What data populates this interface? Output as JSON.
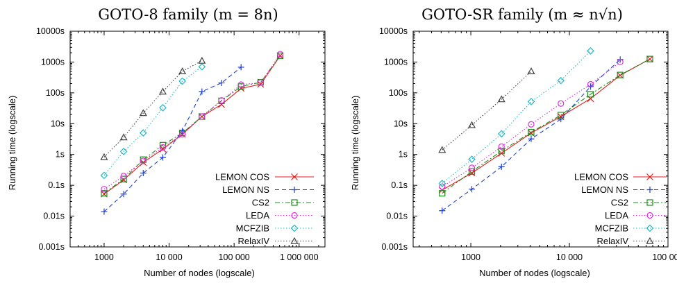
{
  "figure": {
    "colors": {
      "lemon_cos": "#e41a1c",
      "lemon_ns": "#1f3fd6",
      "cs2": "#1a8c1a",
      "leda": "#e030e0",
      "mcfzib": "#20b8c8",
      "relaxiv": "#404040"
    }
  },
  "chart_data": [
    {
      "type": "line",
      "title": "GOTO-8 family (m = 8n)",
      "xlabel": "Number of nodes (logscale)",
      "ylabel": "Running time (logscale)",
      "xscale": "log",
      "yscale": "log",
      "xlim": [
        300,
        2500000
      ],
      "ylim": [
        0.001,
        10000
      ],
      "xticks": [
        1000,
        10000,
        100000,
        1000000
      ],
      "xtick_labels": [
        "1000",
        "10 000",
        "100 000",
        "1 000 000"
      ],
      "yticks": [
        0.001,
        0.01,
        0.1,
        1,
        10,
        100,
        1000,
        10000
      ],
      "ytick_labels": [
        "0.001s",
        "0.01s",
        "0.1s",
        "1s",
        "10s",
        "100s",
        "1000s",
        "10000s"
      ],
      "grid": false,
      "legend_position": "bottom-right",
      "series": [
        {
          "name": "LEMON COS",
          "marker": "x",
          "dash": "solid",
          "color_key": "lemon_cos",
          "x": [
            1000,
            2000,
            4000,
            8000,
            16000,
            32000,
            64000,
            128000,
            256000,
            512000
          ],
          "y": [
            0.052,
            0.15,
            0.55,
            1.5,
            4.5,
            17,
            42,
            140,
            190,
            1600
          ]
        },
        {
          "name": "LEMON NS",
          "marker": "+",
          "dash": "long",
          "color_key": "lemon_ns",
          "x": [
            1000,
            2000,
            4000,
            8000,
            16000,
            32000,
            64000,
            128000
          ],
          "y": [
            0.014,
            0.052,
            0.25,
            0.8,
            5.8,
            110,
            210,
            680
          ]
        },
        {
          "name": "CS2",
          "marker": "square",
          "dash": "dashdot",
          "color_key": "cs2",
          "x": [
            1000,
            2000,
            4000,
            8000,
            16000,
            32000,
            64000,
            128000,
            256000,
            512000
          ],
          "y": [
            0.055,
            0.16,
            0.68,
            2.0,
            5.0,
            17,
            55,
            160,
            220,
            1600
          ]
        },
        {
          "name": "LEDA",
          "marker": "circle",
          "dash": "dotted",
          "color_key": "leda",
          "x": [
            1000,
            2000,
            4000,
            8000,
            16000,
            32000,
            64000,
            128000,
            256000,
            512000
          ],
          "y": [
            0.075,
            0.2,
            0.62,
            1.7,
            4.5,
            17,
            57,
            185,
            215,
            1800
          ]
        },
        {
          "name": "MCFZIB",
          "marker": "diamond",
          "dash": "dotted",
          "color_key": "mcfzib",
          "x": [
            1000,
            2000,
            4000,
            8000,
            16000,
            32000
          ],
          "y": [
            0.21,
            1.25,
            5.0,
            33,
            240,
            700
          ]
        },
        {
          "name": "RelaxIV",
          "marker": "triangle",
          "dash": "dotted",
          "color_key": "relaxiv",
          "x": [
            1000,
            2000,
            4000,
            8000,
            16000,
            32000
          ],
          "y": [
            0.82,
            3.6,
            22,
            110,
            500,
            1100
          ]
        }
      ]
    },
    {
      "type": "line",
      "title": "GOTO-SR family (m ≈ n√n)",
      "xlabel": "Number of nodes (logscale)",
      "ylabel": "Running time (logscale)",
      "xscale": "log",
      "yscale": "log",
      "xlim": [
        260,
        100000
      ],
      "ylim": [
        0.001,
        10000
      ],
      "xticks": [
        1000,
        10000,
        100000
      ],
      "xtick_labels": [
        "1000",
        "10 000",
        "100 000"
      ],
      "yticks": [
        0.001,
        0.01,
        0.1,
        1,
        10,
        100,
        1000,
        10000
      ],
      "ytick_labels": [
        "0.001s",
        "0.01s",
        "0.1s",
        "1s",
        "10s",
        "100s",
        "1000s",
        "10000s"
      ],
      "grid": false,
      "legend_position": "bottom-right",
      "series": [
        {
          "name": "LEMON COS",
          "marker": "x",
          "dash": "solid",
          "color_key": "lemon_cos",
          "x": [
            512,
            1024,
            2048,
            4096,
            8192,
            16384,
            32768,
            65536
          ],
          "y": [
            0.07,
            0.25,
            1.1,
            5.0,
            17,
            65,
            370,
            1250
          ]
        },
        {
          "name": "LEMON NS",
          "marker": "+",
          "dash": "long",
          "color_key": "lemon_ns",
          "x": [
            512,
            1024,
            2048,
            4096,
            8192,
            16384,
            32768
          ],
          "y": [
            0.015,
            0.075,
            0.4,
            3.2,
            14,
            160,
            1200
          ]
        },
        {
          "name": "CS2",
          "marker": "square",
          "dash": "dashdot",
          "color_key": "cs2",
          "x": [
            512,
            1024,
            2048,
            4096,
            8192,
            16384,
            32768,
            65536
          ],
          "y": [
            0.055,
            0.28,
            1.3,
            5.3,
            19,
            90,
            380,
            1250
          ]
        },
        {
          "name": "LEDA",
          "marker": "circle",
          "dash": "dotted",
          "color_key": "leda",
          "x": [
            512,
            1024,
            2048,
            4096,
            8192,
            16384,
            32768
          ],
          "y": [
            0.09,
            0.37,
            1.8,
            9.5,
            45,
            190,
            1000
          ]
        },
        {
          "name": "MCFZIB",
          "marker": "diamond",
          "dash": "dotted",
          "color_key": "mcfzib",
          "x": [
            512,
            1024,
            2048,
            4096,
            8192,
            16384
          ],
          "y": [
            0.115,
            0.7,
            4.7,
            52,
            250,
            2300
          ]
        },
        {
          "name": "RelaxIV",
          "marker": "triangle",
          "dash": "dotted",
          "color_key": "relaxiv",
          "x": [
            512,
            1024,
            2048,
            4096
          ],
          "y": [
            1.4,
            9.0,
            62,
            500
          ]
        }
      ]
    }
  ]
}
